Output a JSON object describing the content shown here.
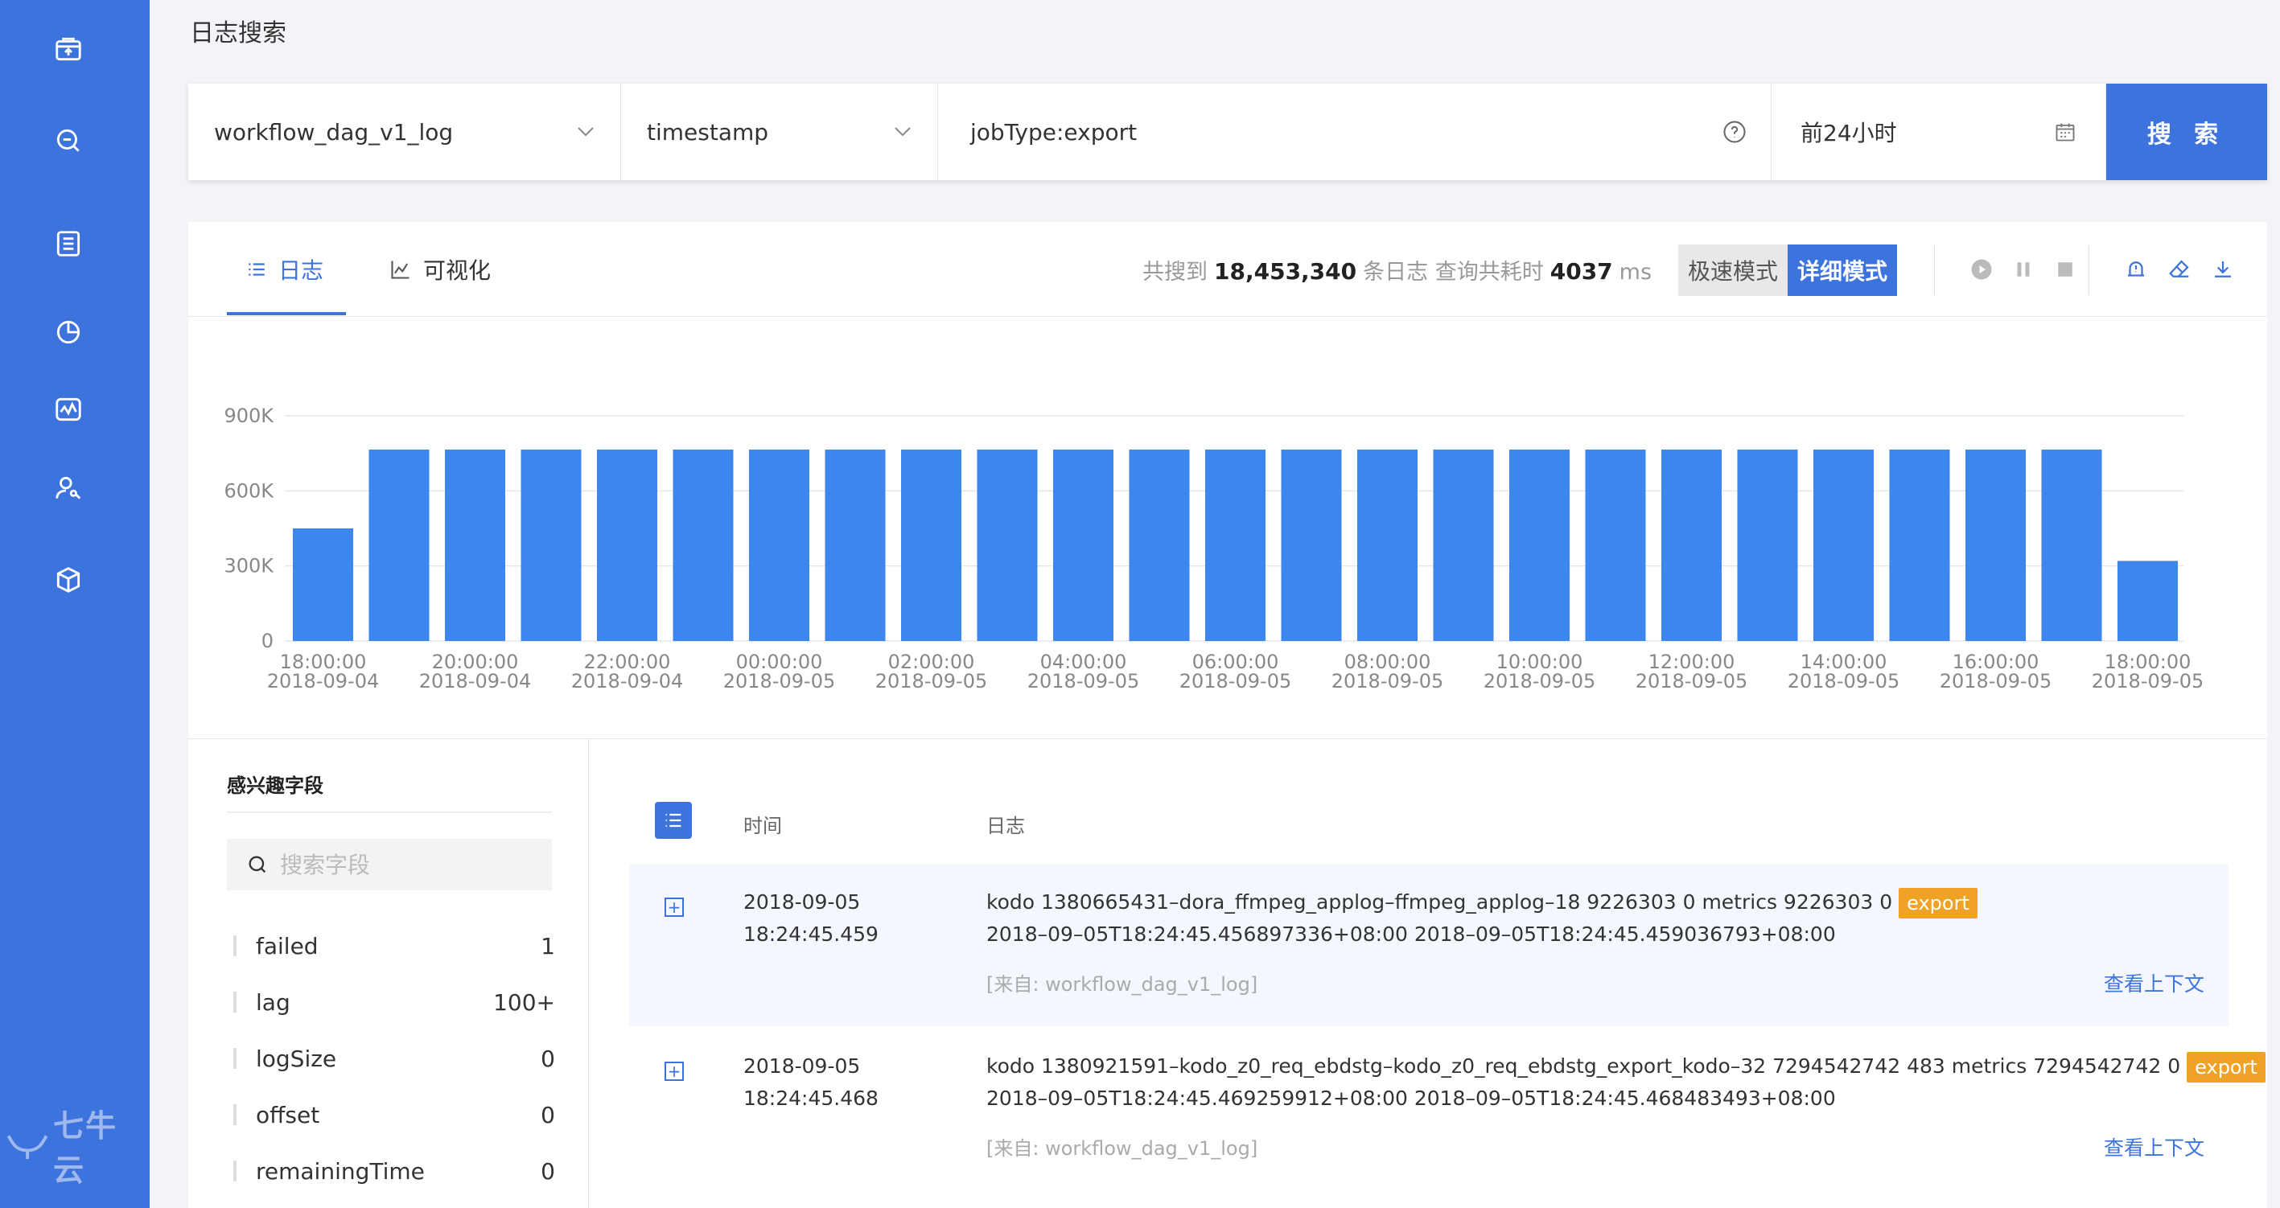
{
  "sidebar": {
    "icons": [
      "export-icon",
      "search-icon",
      "list-icon",
      "pie-chart-icon",
      "monitor-icon",
      "user-key-icon",
      "cube-icon"
    ],
    "brand": "七牛云"
  },
  "header": {
    "title": "日志搜索"
  },
  "search": {
    "repo": "workflow_dag_v1_log",
    "time_field": "timestamp",
    "query": "jobType:export",
    "time_range": "前24小时",
    "button": "搜 索"
  },
  "tabs": [
    {
      "label": "日志"
    },
    {
      "label": "可视化"
    }
  ],
  "stats": {
    "prefix": "共搜到",
    "count": "18,453,340",
    "mid": "条日志 查询共耗时",
    "time": "4037",
    "unit": "ms"
  },
  "modes": {
    "fast": "极速模式",
    "detail": "详细模式"
  },
  "colors": {
    "accent": "#3d73dc",
    "bar": "#3d86ee",
    "badge": "#f0a227"
  },
  "chart_data": {
    "type": "bar",
    "y_ticks": [
      "0",
      "300K",
      "600K",
      "900K"
    ],
    "ylim": [
      0,
      900000
    ],
    "x_ticks": [
      [
        "18:00:00",
        "2018-09-04"
      ],
      [
        "20:00:00",
        "2018-09-04"
      ],
      [
        "22:00:00",
        "2018-09-04"
      ],
      [
        "00:00:00",
        "2018-09-05"
      ],
      [
        "02:00:00",
        "2018-09-05"
      ],
      [
        "04:00:00",
        "2018-09-05"
      ],
      [
        "06:00:00",
        "2018-09-05"
      ],
      [
        "08:00:00",
        "2018-09-05"
      ],
      [
        "10:00:00",
        "2018-09-05"
      ],
      [
        "12:00:00",
        "2018-09-05"
      ],
      [
        "14:00:00",
        "2018-09-05"
      ],
      [
        "16:00:00",
        "2018-09-05"
      ],
      [
        "18:00:00",
        "2018-09-05"
      ]
    ],
    "values": [
      450000,
      765000,
      765000,
      765000,
      765000,
      765000,
      765000,
      765000,
      765000,
      765000,
      765000,
      765000,
      765000,
      765000,
      765000,
      765000,
      765000,
      765000,
      765000,
      765000,
      765000,
      765000,
      765000,
      765000,
      320000
    ]
  },
  "fields": {
    "title": "感兴趣字段",
    "search_placeholder": "搜索字段",
    "items": [
      {
        "name": "failed",
        "count": "1"
      },
      {
        "name": "lag",
        "count": "100+"
      },
      {
        "name": "logSize",
        "count": "0"
      },
      {
        "name": "offset",
        "count": "0"
      },
      {
        "name": "remainingTime",
        "count": "0"
      }
    ]
  },
  "logs": {
    "col_time": "时间",
    "col_log": "日志",
    "context_label": "查看上下文",
    "rows": [
      {
        "date": "2018-09-05",
        "time": "18:24:45.459",
        "line1": "kodo  1380665431–dora_ffmpeg_applog–ffmpeg_applog–18  9226303  0  metrics  9226303  0",
        "badge": "export",
        "line2": "2018–09–05T18:24:45.456897336+08:00  2018–09–05T18:24:45.459036793+08:00",
        "source": "[来自: workflow_dag_v1_log]"
      },
      {
        "date": "2018-09-05",
        "time": "18:24:45.468",
        "line1": "kodo  1380921591–kodo_z0_req_ebdstg–kodo_z0_req_ebdstg_export_kodo–32  7294542742  483  metrics  7294542742  0",
        "badge": "export",
        "line2": "2018–09–05T18:24:45.469259912+08:00  2018–09–05T18:24:45.468483493+08:00",
        "source": "[来自: workflow_dag_v1_log]"
      }
    ]
  }
}
